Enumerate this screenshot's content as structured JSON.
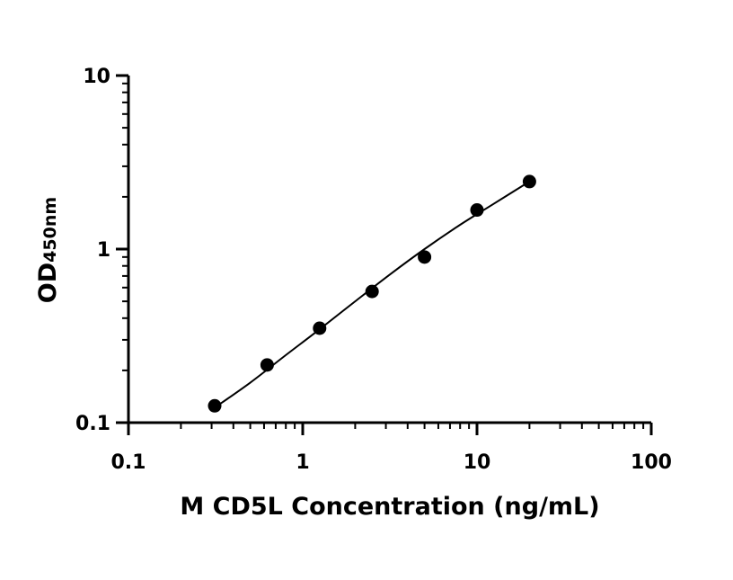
{
  "chart_data": {
    "type": "scatter",
    "title": "",
    "xlabel": "M CD5L Concentration (ng/mL)",
    "ylabel": {
      "main": "OD",
      "sub": "450nm"
    },
    "xscale": "log",
    "yscale": "log",
    "xlim": [
      0.1,
      100
    ],
    "ylim": [
      0.1,
      10
    ],
    "xticks": [
      {
        "value": 0.1,
        "label": "0.1"
      },
      {
        "value": 1,
        "label": "1"
      },
      {
        "value": 10,
        "label": "10"
      },
      {
        "value": 100,
        "label": "100"
      }
    ],
    "yticks": [
      {
        "value": 0.1,
        "label": "0.1"
      },
      {
        "value": 1,
        "label": "1"
      },
      {
        "value": 10,
        "label": "10"
      }
    ],
    "grid": false,
    "legend": "none",
    "series": [
      {
        "x": [
          0.3125,
          0.625,
          1.25,
          2.5,
          5,
          10,
          20
        ],
        "y": [
          0.125,
          0.215,
          0.35,
          0.57,
          0.9,
          1.68,
          2.45
        ],
        "marker": "circle",
        "color": "#000000"
      }
    ],
    "fit_curve": {
      "x": [
        0.3125,
        0.5,
        0.8,
        1.25,
        2,
        3.2,
        5,
        8,
        12,
        20
      ],
      "y": [
        0.122,
        0.17,
        0.245,
        0.345,
        0.5,
        0.72,
        1.0,
        1.38,
        1.78,
        2.45
      ],
      "color": "#000000"
    }
  }
}
